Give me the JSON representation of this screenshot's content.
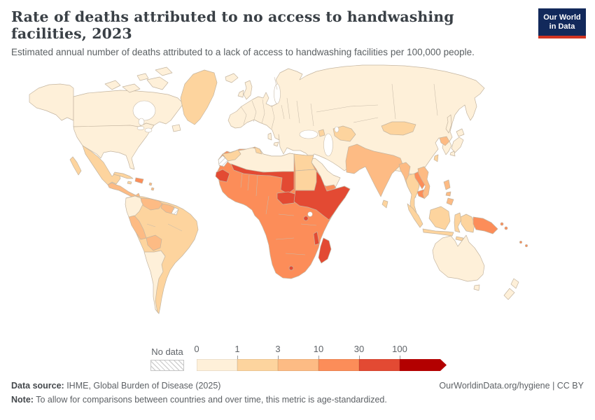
{
  "header": {
    "title": "Rate of deaths attributed to no access to handwashing facilities, 2023",
    "subtitle": "Estimated annual number of deaths attributed to a lack of access to handwashing facilities per 100,000 people.",
    "logo": {
      "line1": "Our World",
      "line2": "in Data",
      "bg_color": "#12295b",
      "accent_color": "#d13422"
    }
  },
  "legend": {
    "no_data_label": "No data",
    "tick_labels": [
      "0",
      "1",
      "3",
      "10",
      "30",
      "100"
    ],
    "bin_ranges": [
      "0-1",
      "1-3",
      "3-10",
      "10-30",
      "30-100",
      "100+"
    ],
    "bin_colors": [
      "#fef0d9",
      "#fdd49e",
      "#fdbb84",
      "#fc8d59",
      "#e34a33",
      "#b30000"
    ],
    "border_color": "#c4b5a0",
    "ocean_color": "#ffffff"
  },
  "footer": {
    "source_label": "Data source:",
    "source_text": " IHME, Global Burden of Disease (2025)",
    "right_text": "OurWorldinData.org/hygiene | CC BY",
    "note_label": "Note:",
    "note_text": " To allow for comparisons between countries and over time, this metric is age-standardized."
  },
  "map_data": {
    "type": "choropleth",
    "metric": "Deaths attributed to no access to handwashing facilities per 100,000 people",
    "year": "2023",
    "regions": [
      {
        "id": "canada",
        "label": "Canada",
        "bin": 0
      },
      {
        "id": "arctic-islands",
        "label": "Canadian Arctic Islands",
        "bin": 0
      },
      {
        "id": "alaska",
        "label": "Alaska (United States)",
        "bin": 0
      },
      {
        "id": "greenland",
        "label": "Greenland",
        "bin": 1
      },
      {
        "id": "usa",
        "label": "United States",
        "bin": 0
      },
      {
        "id": "mexico",
        "label": "Mexico",
        "bin": 1
      },
      {
        "id": "central-america",
        "label": "Central America",
        "bin": 2
      },
      {
        "id": "cuba",
        "label": "Cuba",
        "bin": 1
      },
      {
        "id": "jamaica",
        "label": "Jamaica",
        "bin": 1
      },
      {
        "id": "hispaniola",
        "label": "Haiti & Dominican Republic",
        "bin": 3
      },
      {
        "id": "antilles",
        "label": "Lesser Antilles",
        "bin": 2
      },
      {
        "id": "colombia-ecuador",
        "label": "Colombia & Ecuador",
        "bin": 0
      },
      {
        "id": "venezuela",
        "label": "Venezuela",
        "bin": 2
      },
      {
        "id": "guyanas",
        "label": "Guyana & Suriname",
        "bin": 2
      },
      {
        "id": "french-guiana",
        "label": "French Guiana",
        "bin": "no_data"
      },
      {
        "id": "brazil",
        "label": "Brazil",
        "bin": 1
      },
      {
        "id": "peru",
        "label": "Peru",
        "bin": 2
      },
      {
        "id": "bolivia",
        "label": "Bolivia",
        "bin": 2
      },
      {
        "id": "southern-cone",
        "label": "Argentina, Chile, Paraguay & Uruguay",
        "bin": 0
      },
      {
        "id": "eurasia",
        "label": "Europe, Russia, China & Middle East",
        "bin": 0
      },
      {
        "id": "iceland",
        "label": "Iceland",
        "bin": 0
      },
      {
        "id": "uk",
        "label": "United Kingdom",
        "bin": 0
      },
      {
        "id": "ireland",
        "label": "Ireland",
        "bin": 0
      },
      {
        "id": "caucasus",
        "label": "Caucasus",
        "bin": 1
      },
      {
        "id": "central-asia",
        "label": "Central Asia",
        "bin": 1
      },
      {
        "id": "mongolia",
        "label": "Mongolia",
        "bin": 1
      },
      {
        "id": "south-asia",
        "label": "Afghanistan, Pakistan & India",
        "bin": 2
      },
      {
        "id": "sri-lanka",
        "label": "Sri Lanka",
        "bin": 1
      },
      {
        "id": "myanmar",
        "label": "Myanmar",
        "bin": 2
      },
      {
        "id": "thailand-malaysia",
        "label": "Thailand & Malaysia",
        "bin": 1
      },
      {
        "id": "laos",
        "label": "Laos",
        "bin": 3
      },
      {
        "id": "cambodia",
        "label": "Cambodia",
        "bin": 3
      },
      {
        "id": "vietnam",
        "label": "Vietnam",
        "bin": 2
      },
      {
        "id": "north-korea",
        "label": "North Korea",
        "bin": 2
      },
      {
        "id": "japan",
        "label": "Japan",
        "bin": 0
      },
      {
        "id": "taiwan",
        "label": "Taiwan",
        "bin": 1
      },
      {
        "id": "philippines",
        "label": "Philippines",
        "bin": 2
      },
      {
        "id": "indonesia",
        "label": "Indonesia & Malaysia (islands)",
        "bin": 1
      },
      {
        "id": "new-guinea-west",
        "label": "Indonesian New Guinea",
        "bin": 1
      },
      {
        "id": "papua-new-guinea",
        "label": "Papua New Guinea",
        "bin": 3
      },
      {
        "id": "solomon-islands",
        "label": "Solomon Islands",
        "bin": 3
      },
      {
        "id": "pacific-islands",
        "label": "Pacific Islands",
        "bin": 3
      },
      {
        "id": "australia",
        "label": "Australia",
        "bin": 0
      },
      {
        "id": "new-zealand",
        "label": "New Zealand",
        "bin": 0
      },
      {
        "id": "arabia",
        "label": "Arabian Peninsula",
        "bin": 0
      },
      {
        "id": "yemen",
        "label": "Yemen",
        "bin": 3
      },
      {
        "id": "africa",
        "label": "Sub-Saharan Africa (Kenya, DRC, Angola, Nigeria...)",
        "bin": 3
      },
      {
        "id": "north-africa",
        "label": "Algeria & Libya",
        "bin": 0
      },
      {
        "id": "morocco",
        "label": "Morocco",
        "bin": 1
      },
      {
        "id": "tunisia",
        "label": "Tunisia",
        "bin": 1
      },
      {
        "id": "egypt",
        "label": "Egypt",
        "bin": 1
      },
      {
        "id": "sudan",
        "label": "Sudan",
        "bin": 1
      },
      {
        "id": "western-sahara",
        "label": "Western Sahara",
        "bin": "no_data"
      },
      {
        "id": "sahel",
        "label": "Mali, Burkina Faso, Niger & Chad",
        "bin": 4
      },
      {
        "id": "guinea-coast",
        "label": "Guinea & Sierra Leone",
        "bin": 4
      },
      {
        "id": "car",
        "label": "Central African Republic",
        "bin": 4
      },
      {
        "id": "horn",
        "label": "South Sudan, Eritrea, Ethiopia & Somalia",
        "bin": 4
      },
      {
        "id": "burundi",
        "label": "Burundi & Rwanda",
        "bin": 4
      },
      {
        "id": "malawi",
        "label": "Malawi",
        "bin": 4
      },
      {
        "id": "lesotho",
        "label": "Lesotho",
        "bin": 4
      },
      {
        "id": "madagascar",
        "label": "Madagascar",
        "bin": 4
      }
    ]
  }
}
